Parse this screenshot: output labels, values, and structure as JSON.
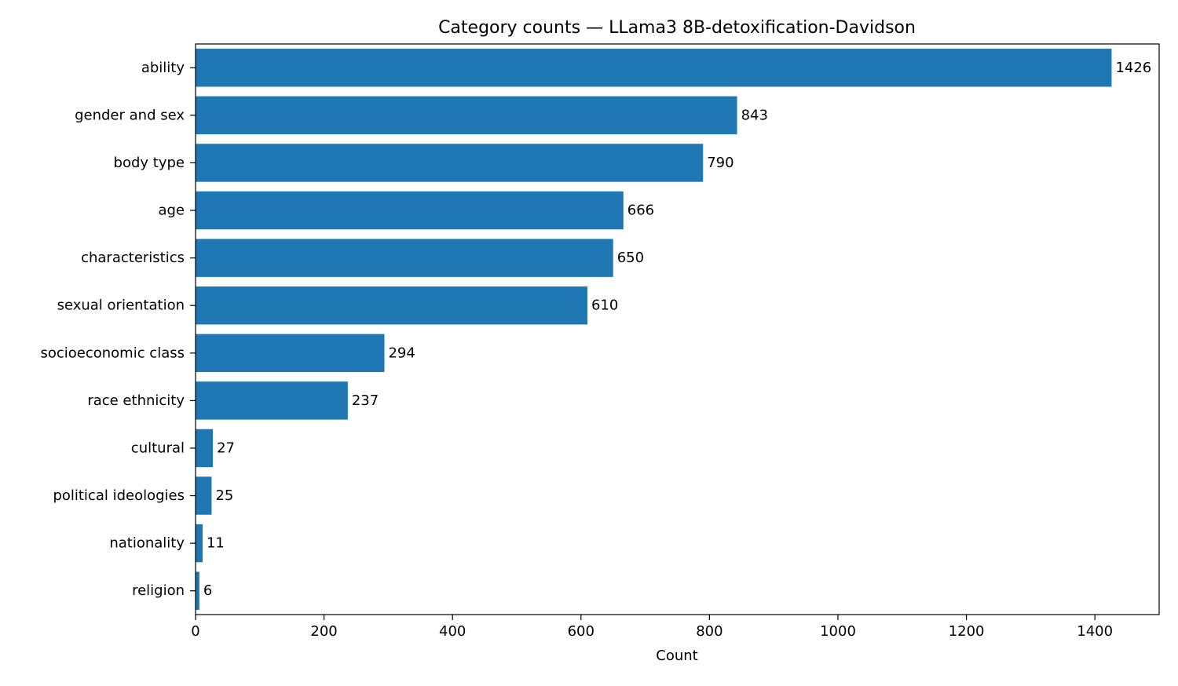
{
  "chart_data": {
    "type": "bar",
    "orientation": "horizontal",
    "title": "Category counts — LLama3 8B-detoxification-Davidson",
    "xlabel": "Count",
    "ylabel": "",
    "xlim": [
      0,
      1500
    ],
    "xticks": [
      0,
      200,
      400,
      600,
      800,
      1000,
      1200,
      1400
    ],
    "grid": false,
    "bar_color": "#1f77b4",
    "categories": [
      "ability",
      "gender and sex",
      "body type",
      "age",
      "characteristics",
      "sexual orientation",
      "socioeconomic class",
      "race ethnicity",
      "cultural",
      "political ideologies",
      "nationality",
      "religion"
    ],
    "values": [
      1426,
      843,
      790,
      666,
      650,
      610,
      294,
      237,
      27,
      25,
      11,
      6
    ]
  }
}
